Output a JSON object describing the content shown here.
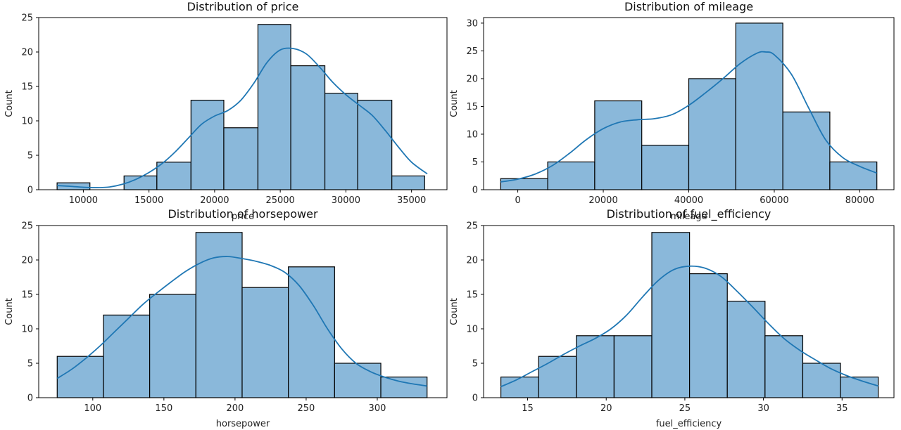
{
  "chart_data": [
    {
      "type": "bar",
      "title": "Distribution of price",
      "xlabel": "price",
      "ylabel": "Count",
      "xlim": [
        6600,
        37700
      ],
      "ylim": [
        0,
        25
      ],
      "xticks": [
        10000,
        15000,
        20000,
        25000,
        30000,
        35000
      ],
      "yticks": [
        0,
        5,
        10,
        15,
        20,
        25
      ],
      "bins": [
        {
          "start": 8000,
          "end": 10500,
          "count": 1
        },
        {
          "start": 10500,
          "end": 13100,
          "count": 0
        },
        {
          "start": 13100,
          "end": 15600,
          "count": 2
        },
        {
          "start": 15600,
          "end": 18200,
          "count": 4
        },
        {
          "start": 18200,
          "end": 20700,
          "count": 13
        },
        {
          "start": 20700,
          "end": 23300,
          "count": 9
        },
        {
          "start": 23300,
          "end": 25800,
          "count": 24
        },
        {
          "start": 25800,
          "end": 28400,
          "count": 18
        },
        {
          "start": 28400,
          "end": 30900,
          "count": 14
        },
        {
          "start": 30900,
          "end": 33500,
          "count": 13
        },
        {
          "start": 33500,
          "end": 36000,
          "count": 2
        }
      ],
      "kde": {
        "x": [
          8000,
          9000,
          10000,
          11000,
          12000,
          13000,
          14000,
          15000,
          16000,
          17000,
          18000,
          19000,
          20000,
          21000,
          22000,
          23000,
          24000,
          25000,
          26000,
          27000,
          28000,
          29000,
          30000,
          31000,
          32000,
          33000,
          34000,
          35000,
          36200
        ],
        "y": [
          0.6,
          0.5,
          0.35,
          0.3,
          0.4,
          0.8,
          1.5,
          2.5,
          3.8,
          5.5,
          7.5,
          9.5,
          10.7,
          11.5,
          13.0,
          15.5,
          18.5,
          20.3,
          20.5,
          19.7,
          17.8,
          15.6,
          13.8,
          12.3,
          10.8,
          8.6,
          6.2,
          4.0,
          2.3
        ]
      }
    },
    {
      "type": "bar",
      "title": "Distribution of mileage",
      "xlabel": "mileage",
      "ylabel": "Count",
      "xlim": [
        -8000,
        88000
      ],
      "ylim": [
        0,
        31
      ],
      "xticks": [
        0,
        20000,
        40000,
        60000,
        80000
      ],
      "yticks": [
        0,
        5,
        10,
        15,
        20,
        25,
        30
      ],
      "bins": [
        {
          "start": -4000,
          "end": 7000,
          "count": 2
        },
        {
          "start": 7000,
          "end": 18000,
          "count": 5
        },
        {
          "start": 18000,
          "end": 29000,
          "count": 16
        },
        {
          "start": 29000,
          "end": 40000,
          "count": 8
        },
        {
          "start": 40000,
          "end": 51000,
          "count": 20
        },
        {
          "start": 51000,
          "end": 62000,
          "count": 30
        },
        {
          "start": 62000,
          "end": 73000,
          "count": 14
        },
        {
          "start": 73000,
          "end": 84000,
          "count": 5
        }
      ],
      "kde": {
        "x": [
          -4000,
          0,
          4000,
          8000,
          12000,
          16000,
          20000,
          24000,
          28000,
          32000,
          36000,
          40000,
          44000,
          48000,
          52000,
          56000,
          58000,
          60000,
          64000,
          68000,
          72000,
          76000,
          80000,
          84000
        ],
        "y": [
          1.4,
          1.9,
          2.8,
          4.3,
          6.5,
          9.0,
          11.0,
          12.2,
          12.6,
          12.8,
          13.5,
          15.2,
          17.5,
          20.0,
          22.7,
          24.6,
          24.8,
          24.3,
          20.8,
          14.8,
          9.0,
          5.8,
          4.2,
          3.0
        ]
      }
    },
    {
      "type": "bar",
      "title": "Distribution of horsepower",
      "xlabel": "horsepower",
      "ylabel": "Count",
      "xlim": [
        62,
        349
      ],
      "ylim": [
        0,
        25
      ],
      "xticks": [
        100,
        150,
        200,
        250,
        300
      ],
      "yticks": [
        0,
        5,
        10,
        15,
        20,
        25
      ],
      "bins": [
        {
          "start": 75,
          "end": 107.5,
          "count": 6
        },
        {
          "start": 107.5,
          "end": 140,
          "count": 12
        },
        {
          "start": 140,
          "end": 172.5,
          "count": 15
        },
        {
          "start": 172.5,
          "end": 205,
          "count": 24
        },
        {
          "start": 205,
          "end": 237.5,
          "count": 16
        },
        {
          "start": 237.5,
          "end": 270,
          "count": 19
        },
        {
          "start": 270,
          "end": 302.5,
          "count": 5
        },
        {
          "start": 302.5,
          "end": 335,
          "count": 3
        }
      ],
      "kde": {
        "x": [
          75,
          85,
          95,
          105,
          115,
          125,
          135,
          145,
          155,
          165,
          175,
          185,
          195,
          205,
          215,
          225,
          235,
          245,
          255,
          265,
          275,
          285,
          295,
          305,
          315,
          325,
          335
        ],
        "y": [
          2.8,
          4.1,
          5.7,
          7.5,
          9.5,
          11.5,
          13.5,
          15.2,
          16.8,
          18.3,
          19.5,
          20.3,
          20.5,
          20.2,
          19.8,
          19.2,
          18.2,
          16.3,
          13.4,
          10.0,
          7.1,
          5.0,
          3.8,
          3.0,
          2.4,
          2.0,
          1.7
        ]
      }
    },
    {
      "type": "bar",
      "title": "Distribution of fuel_efficiency",
      "xlabel": "fuel_efficiency",
      "ylabel": "Count",
      "xlim": [
        12.2,
        38.3
      ],
      "ylim": [
        0,
        25
      ],
      "xticks": [
        15,
        20,
        25,
        30,
        35
      ],
      "yticks": [
        0,
        5,
        10,
        15,
        20,
        25
      ],
      "bins": [
        {
          "start": 13.3,
          "end": 15.7,
          "count": 3
        },
        {
          "start": 15.7,
          "end": 18.1,
          "count": 6
        },
        {
          "start": 18.1,
          "end": 20.5,
          "count": 9
        },
        {
          "start": 20.5,
          "end": 22.9,
          "count": 9
        },
        {
          "start": 22.9,
          "end": 25.3,
          "count": 24
        },
        {
          "start": 25.3,
          "end": 27.7,
          "count": 18
        },
        {
          "start": 27.7,
          "end": 30.1,
          "count": 14
        },
        {
          "start": 30.1,
          "end": 32.5,
          "count": 9
        },
        {
          "start": 32.5,
          "end": 34.9,
          "count": 5
        },
        {
          "start": 34.9,
          "end": 37.3,
          "count": 3
        }
      ],
      "kde": {
        "x": [
          13.3,
          14.3,
          15.3,
          16.3,
          17.3,
          18.3,
          19.3,
          20.3,
          21.3,
          22.3,
          23.3,
          24.3,
          25.3,
          26.3,
          27.3,
          28.3,
          29.3,
          30.3,
          31.3,
          32.3,
          33.3,
          34.3,
          35.3,
          36.3,
          37.3
        ],
        "y": [
          1.6,
          2.6,
          3.8,
          5.0,
          6.3,
          7.5,
          8.6,
          10.0,
          12.0,
          14.6,
          17.0,
          18.6,
          19.1,
          18.8,
          17.6,
          15.5,
          13.2,
          10.8,
          8.6,
          6.9,
          5.5,
          4.2,
          3.2,
          2.4,
          1.7
        ]
      }
    }
  ],
  "colors": {
    "bar_fill": "#8ab8da",
    "bar_edge": "#000000",
    "kde_line": "#1f77b4",
    "axes": "#000000",
    "text": "#222222"
  }
}
